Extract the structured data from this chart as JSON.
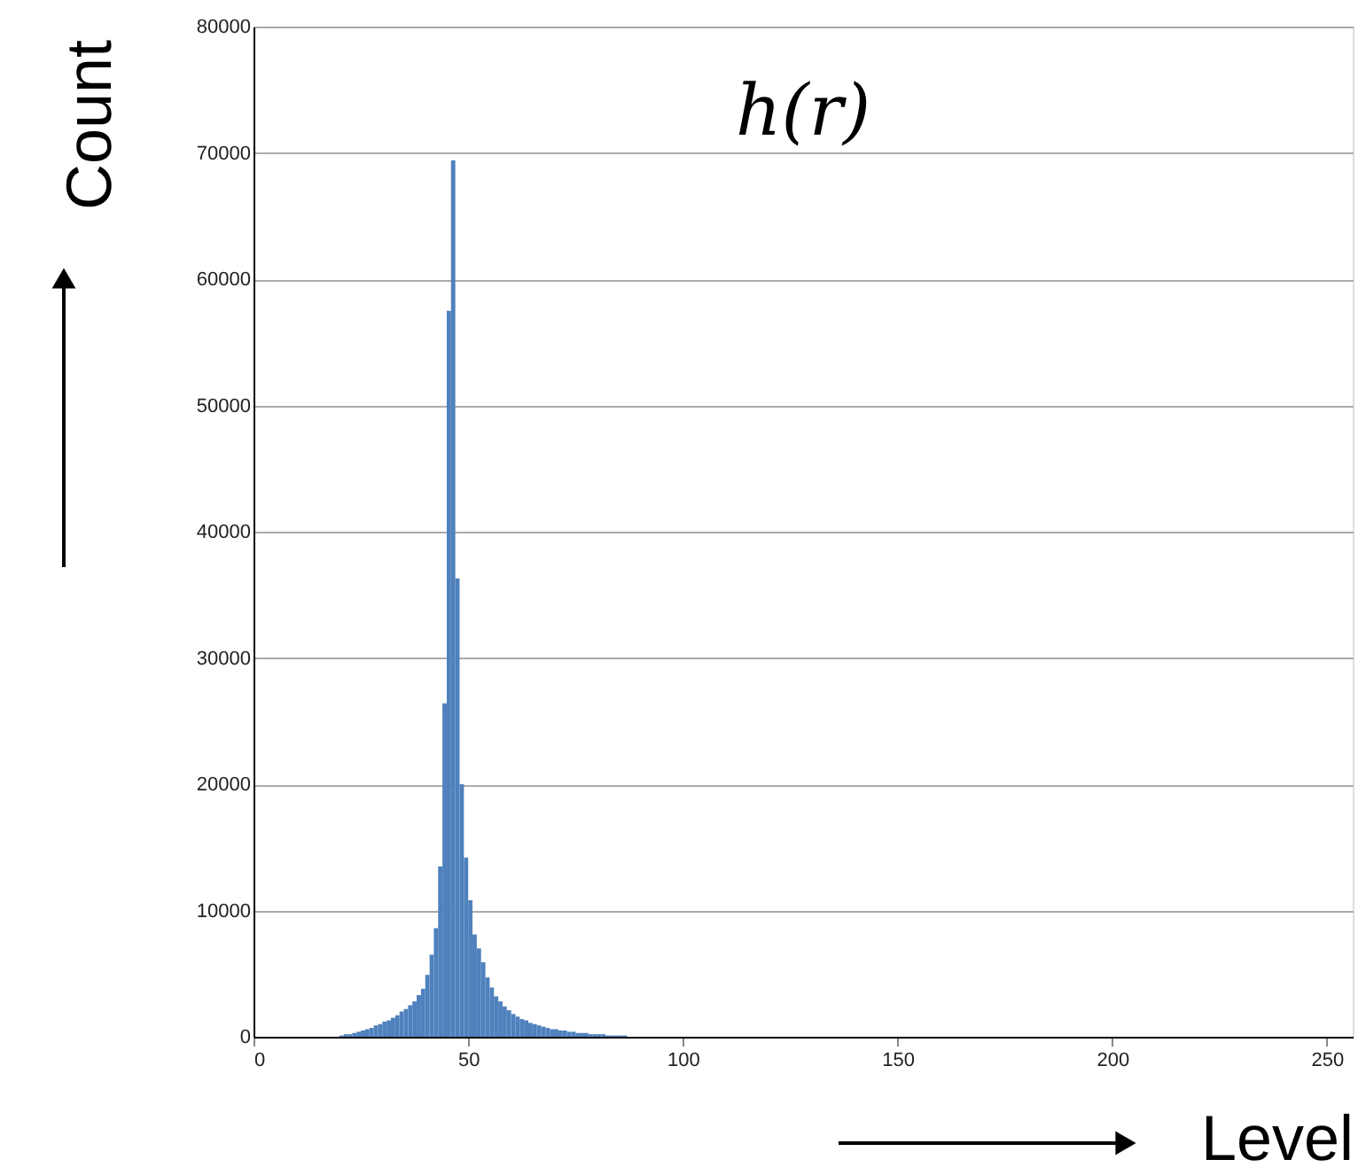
{
  "chart_data": {
    "type": "histogram",
    "title": "h(r)",
    "xlabel": "Level",
    "ylabel": "Count",
    "color": "#4f81bd",
    "bins": [
      20,
      21,
      22,
      23,
      24,
      25,
      26,
      27,
      28,
      29,
      30,
      31,
      32,
      33,
      34,
      35,
      36,
      37,
      38,
      39,
      40,
      41,
      42,
      43,
      44,
      45,
      46,
      47,
      48,
      49,
      50,
      51,
      52,
      53,
      54,
      55,
      56,
      57,
      58,
      59,
      60,
      61,
      62,
      63,
      64,
      65,
      66,
      67,
      68,
      69,
      70,
      71,
      72,
      73,
      74,
      75,
      76,
      77,
      78,
      79,
      80,
      81,
      82,
      83,
      84,
      85,
      86,
      87,
      88,
      89,
      90
    ],
    "values": [
      100,
      200,
      200,
      300,
      400,
      500,
      600,
      700,
      900,
      1000,
      1200,
      1300,
      1500,
      1700,
      2000,
      2200,
      2500,
      2800,
      3300,
      3800,
      4900,
      6500,
      8600,
      13500,
      26400,
      57500,
      69400,
      36300,
      20000,
      14200,
      10800,
      8100,
      7000,
      5900,
      4700,
      3900,
      3200,
      2800,
      2400,
      2100,
      1800,
      1600,
      1400,
      1300,
      1100,
      1000,
      900,
      800,
      700,
      600,
      600,
      500,
      500,
      400,
      400,
      300,
      300,
      300,
      200,
      200,
      200,
      200,
      100,
      100,
      100,
      100,
      100,
      0,
      0,
      0
    ],
    "xlim": [
      0,
      256
    ],
    "xticks": [
      0,
      50,
      100,
      150,
      200,
      250
    ],
    "ylim": [
      0,
      80000
    ],
    "yticks": [
      0,
      10000,
      20000,
      30000,
      40000,
      50000,
      60000,
      70000,
      80000
    ],
    "grid": "y"
  }
}
